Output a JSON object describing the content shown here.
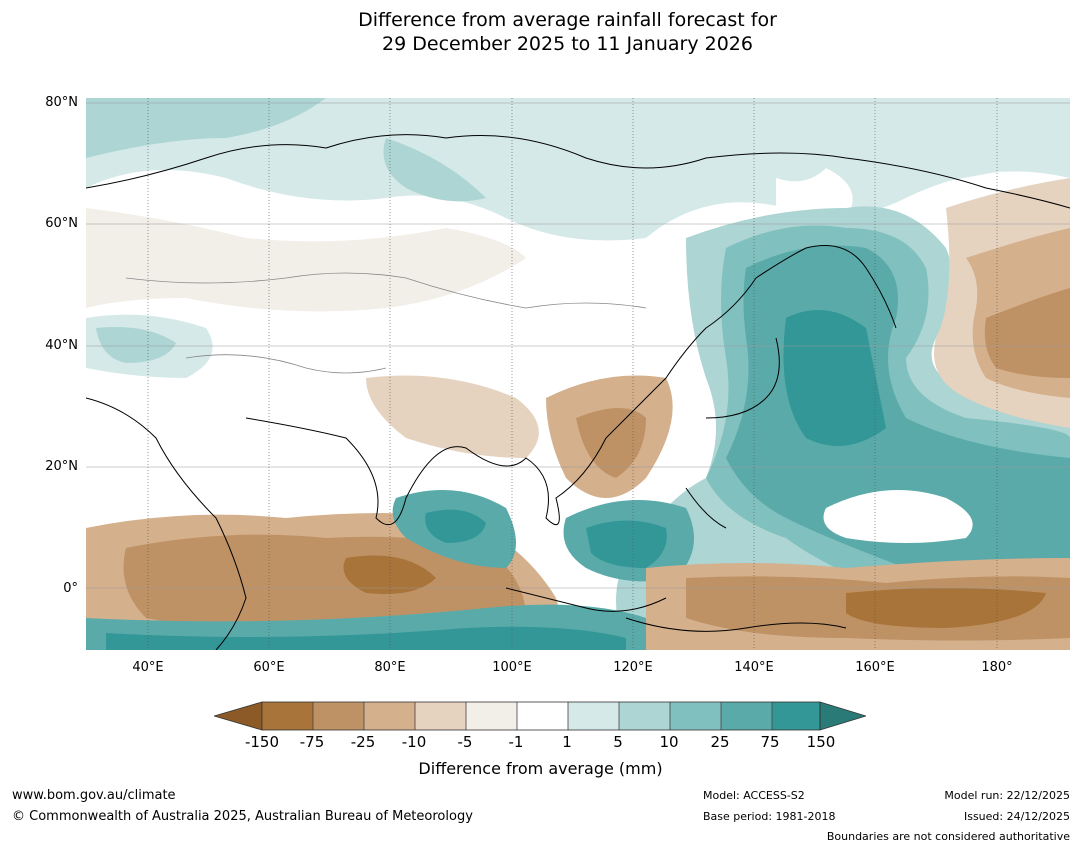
{
  "title": {
    "line1": "Difference from average rainfall forecast for",
    "line2": "29 December 2025 to 11 January 2026"
  },
  "map": {
    "lat_labels": [
      "80°N",
      "60°N",
      "40°N",
      "20°N",
      "0°"
    ],
    "lon_labels": [
      "40°E",
      "60°E",
      "80°E",
      "100°E",
      "120°E",
      "140°E",
      "160°E",
      "180°"
    ],
    "colors": {
      "dry_extreme": "#8c5a26",
      "dry_150": "#a87439",
      "dry_75": "#bf9265",
      "dry_25": "#d4b08c",
      "dry_10": "#e5d3c0",
      "dry_5": "#f2eee8",
      "neutral": "#ffffff",
      "wet_1": "#d5e9e8",
      "wet_5": "#acd5d4",
      "wet_10": "#80c0bf",
      "wet_25": "#5aaaaa",
      "wet_75": "#339797",
      "wet_extreme": "#2a7a78"
    }
  },
  "colorbar": {
    "ticks": [
      "-150",
      "-75",
      "-25",
      "-10",
      "-5",
      "-1",
      "1",
      "5",
      "10",
      "25",
      "75",
      "150"
    ],
    "label": "Difference from average (mm)"
  },
  "footer": {
    "website": "www.bom.gov.au/climate",
    "copyright": "© Commonwealth of Australia 2025, Australian Bureau of Meteorology",
    "model": "Model: ACCESS-S2",
    "base_period": "Base period: 1981-2018",
    "model_run": "Model run: 22/12/2025",
    "issued": "Issued: 24/12/2025",
    "disclaimer": "Boundaries are not considered authoritative"
  }
}
